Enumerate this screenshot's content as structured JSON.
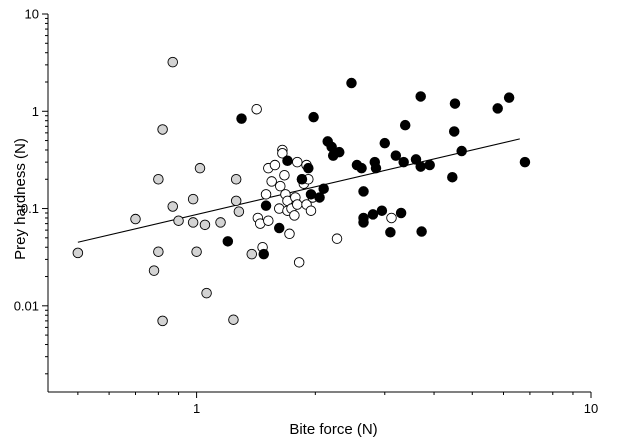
{
  "chart_data": {
    "type": "scatter",
    "title": "",
    "xlabel": "Bite force (N)",
    "ylabel": "Prey hardness (N)",
    "x_scale": "log",
    "y_scale": "log",
    "xlim": [
      0.42,
      10
    ],
    "ylim": [
      0.0013,
      10
    ],
    "x_ticks": [
      1,
      10
    ],
    "x_tick_labels": [
      "1",
      "10"
    ],
    "y_ticks": [
      0.01,
      0.1,
      1,
      10
    ],
    "y_tick_labels": [
      "0.01",
      "0.1",
      "1",
      "10"
    ],
    "grid": false,
    "legend": "none",
    "series": [
      {
        "marker": "grey-circle",
        "color": "#d3d3d3",
        "points": [
          [
            0.5,
            0.035
          ],
          [
            0.7,
            0.078
          ],
          [
            0.78,
            0.023
          ],
          [
            0.8,
            0.036
          ],
          [
            0.8,
            0.2
          ],
          [
            0.82,
            0.65
          ],
          [
            0.82,
            0.007
          ],
          [
            0.87,
            3.2
          ],
          [
            0.87,
            0.105
          ],
          [
            0.9,
            0.075
          ],
          [
            0.98,
            0.072
          ],
          [
            0.98,
            0.125
          ],
          [
            1.0,
            0.036
          ],
          [
            1.02,
            0.26
          ],
          [
            1.05,
            0.068
          ],
          [
            1.06,
            0.0135
          ],
          [
            1.15,
            0.072
          ],
          [
            1.24,
            0.0072
          ],
          [
            1.26,
            0.2
          ],
          [
            1.26,
            0.12
          ],
          [
            1.28,
            0.093
          ],
          [
            1.38,
            0.034
          ]
        ]
      },
      {
        "marker": "open-circle",
        "color": "#ffffff",
        "points": [
          [
            1.42,
            1.05
          ],
          [
            1.43,
            0.08
          ],
          [
            1.45,
            0.07
          ],
          [
            1.47,
            0.04
          ],
          [
            1.5,
            0.14
          ],
          [
            1.52,
            0.075
          ],
          [
            1.52,
            0.26
          ],
          [
            1.55,
            0.19
          ],
          [
            1.58,
            0.28
          ],
          [
            1.62,
            0.1
          ],
          [
            1.63,
            0.17
          ],
          [
            1.65,
            0.4
          ],
          [
            1.65,
            0.37
          ],
          [
            1.67,
            0.22
          ],
          [
            1.68,
            0.14
          ],
          [
            1.7,
            0.095
          ],
          [
            1.7,
            0.12
          ],
          [
            1.72,
            0.055
          ],
          [
            1.74,
            0.1
          ],
          [
            1.77,
            0.085
          ],
          [
            1.78,
            0.13
          ],
          [
            1.8,
            0.3
          ],
          [
            1.8,
            0.11
          ],
          [
            1.82,
            0.028
          ],
          [
            1.85,
            0.2
          ],
          [
            1.87,
            0.18
          ],
          [
            1.9,
            0.28
          ],
          [
            1.9,
            0.11
          ],
          [
            1.92,
            0.2
          ],
          [
            1.95,
            0.095
          ],
          [
            1.97,
            0.13
          ],
          [
            2.27,
            0.049
          ],
          [
            3.12,
            0.08
          ]
        ]
      },
      {
        "marker": "filled-circle",
        "color": "#000000",
        "points": [
          [
            1.2,
            0.046
          ],
          [
            1.3,
            0.84
          ],
          [
            1.48,
            0.034
          ],
          [
            1.5,
            0.107
          ],
          [
            1.62,
            0.063
          ],
          [
            1.7,
            0.31
          ],
          [
            1.85,
            0.2
          ],
          [
            1.92,
            0.26
          ],
          [
            1.95,
            0.14
          ],
          [
            1.98,
            0.87
          ],
          [
            2.05,
            0.13
          ],
          [
            2.1,
            0.16
          ],
          [
            2.15,
            0.49
          ],
          [
            2.2,
            0.43
          ],
          [
            2.22,
            0.35
          ],
          [
            2.3,
            0.38
          ],
          [
            2.47,
            1.95
          ],
          [
            2.55,
            0.28
          ],
          [
            2.62,
            0.26
          ],
          [
            2.65,
            0.15
          ],
          [
            2.65,
            0.08
          ],
          [
            2.65,
            0.072
          ],
          [
            2.8,
            0.087
          ],
          [
            2.83,
            0.3
          ],
          [
            2.85,
            0.26
          ],
          [
            2.95,
            0.095
          ],
          [
            3.0,
            0.47
          ],
          [
            3.1,
            0.057
          ],
          [
            3.2,
            0.35
          ],
          [
            3.3,
            0.09
          ],
          [
            3.35,
            0.3
          ],
          [
            3.38,
            0.72
          ],
          [
            3.6,
            0.32
          ],
          [
            3.7,
            0.27
          ],
          [
            3.7,
            1.42
          ],
          [
            3.72,
            0.058
          ],
          [
            3.9,
            0.28
          ],
          [
            4.45,
            0.21
          ],
          [
            4.5,
            0.62
          ],
          [
            4.52,
            1.2
          ],
          [
            4.7,
            0.39
          ],
          [
            5.8,
            1.07
          ],
          [
            6.2,
            1.38
          ],
          [
            6.8,
            0.3
          ]
        ]
      }
    ],
    "regression_line": {
      "x": [
        0.5,
        6.6
      ],
      "y": [
        0.045,
        0.52
      ]
    }
  }
}
